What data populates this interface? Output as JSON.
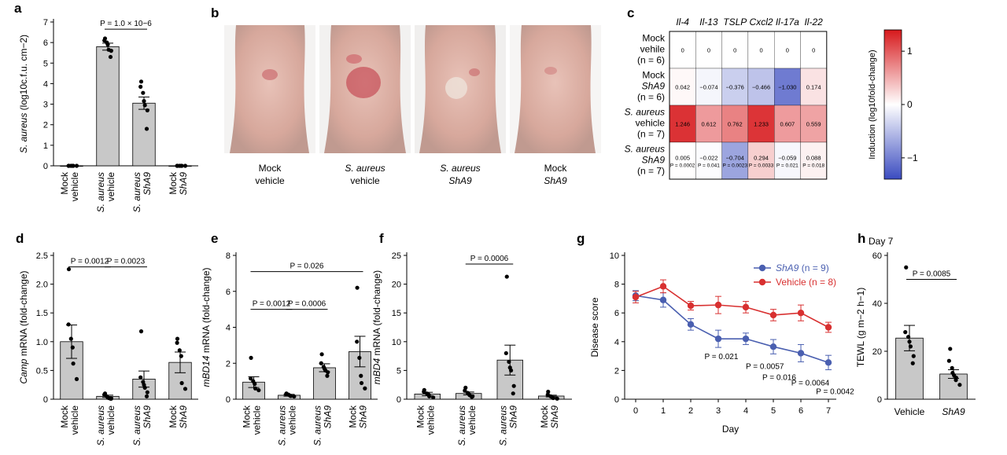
{
  "colors": {
    "bar": "#c8c8c8",
    "dot": "#000000",
    "sha9_line": "#4a5fb0",
    "vehicle_line": "#d83030",
    "heat_pos": "#d7191c",
    "heat_neg": "#3b4cc0",
    "skin": "#e0b6aa"
  },
  "panels": {
    "a": "a",
    "b": "b",
    "c": "c",
    "d": "d",
    "e": "e",
    "f": "f",
    "g": "g",
    "h": "h"
  },
  "photos": {
    "labels": [
      [
        "Mock",
        "vehicle"
      ],
      [
        "S. aureus",
        "vehicle"
      ],
      [
        "S. aureus",
        "ShA9"
      ],
      [
        "Mock",
        "ShA9"
      ]
    ]
  },
  "chart_data": [
    {
      "id": "a",
      "type": "bar",
      "ylabel": "S. aureus (log10c.f.u. cm−2)",
      "ylim": [
        0,
        7
      ],
      "yticks": [
        "0",
        "1",
        "2",
        "3",
        "4",
        "5",
        "6",
        "7"
      ],
      "categories": [
        [
          "Mock",
          "vehicle"
        ],
        [
          "S. aureus",
          "vehicle"
        ],
        [
          "S. aureus",
          "ShA9"
        ],
        [
          "Mock",
          "ShA9"
        ]
      ],
      "values": [
        0,
        5.8,
        3.05,
        0
      ],
      "errors": [
        0,
        0.17,
        0.3,
        0
      ],
      "points": [
        [
          0,
          0,
          0,
          0,
          0,
          0
        ],
        [
          6.2,
          6.1,
          6.0,
          5.9,
          5.65,
          5.6,
          5.3
        ],
        [
          4.1,
          3.85,
          3.55,
          3.15,
          2.95,
          2.7,
          1.8
        ],
        [
          0,
          0,
          0,
          0,
          0,
          0
        ]
      ],
      "annotations": [
        {
          "text": "P = 1.0 × 10−6",
          "from": 1,
          "to": 2,
          "y": 6.65
        }
      ]
    },
    {
      "id": "c",
      "type": "heatmap",
      "columns": [
        "Il-4",
        "Il-13",
        "TSLP",
        "Cxcl2",
        "Il-17a",
        "Il-22"
      ],
      "rows": [
        [
          "Mock",
          "vehile",
          "(n = 6)"
        ],
        [
          "Mock",
          "ShA9",
          "(n = 6)"
        ],
        [
          "S. aureus",
          "vehicle",
          "(n = 7)"
        ],
        [
          "S. aureus",
          "ShA9",
          "(n = 7)"
        ]
      ],
      "values": [
        [
          0,
          0,
          0,
          0,
          0,
          0
        ],
        [
          0.042,
          -0.074,
          -0.376,
          -0.466,
          -1.03,
          0.174
        ],
        [
          1.246,
          0.612,
          0.762,
          1.233,
          0.607,
          0.559
        ],
        [
          0.005,
          -0.022,
          -0.704,
          0.294,
          -0.059,
          0.088
        ]
      ],
      "value_labels": [
        [
          "0",
          "0",
          "0",
          "0",
          "0",
          "0"
        ],
        [
          "0.042",
          "−0.074",
          "−0.376",
          "−0.466",
          "−1.030",
          "0.174"
        ],
        [
          "1.246",
          "0.612",
          "0.762",
          "1.233",
          "0.607",
          "0.559"
        ],
        [
          "0.005",
          "−0.022",
          "−0.704",
          "0.294",
          "−0.059",
          "0.088"
        ]
      ],
      "pvalues": [
        null,
        null,
        null,
        [
          "P = 0.0002",
          "P = 0.041",
          "P = 0.0023",
          "P = 0.0033",
          "P = 0.021",
          "P = 0.018"
        ]
      ],
      "colorbar": {
        "ticks": [
          "1",
          "0",
          "−1"
        ],
        "label": "Induction (log10fold-change)",
        "range": [
          -1.4,
          1.4
        ]
      }
    },
    {
      "id": "d",
      "type": "bar",
      "ylabel": "Camp mRNA (fold-change)",
      "ylim": [
        0,
        2.5
      ],
      "yticks": [
        "0",
        "0.5",
        "1.0",
        "1.5",
        "2.0",
        "2.5"
      ],
      "categories": [
        [
          "Mock",
          "vehicle"
        ],
        [
          "S. aureus",
          "vehicle"
        ],
        [
          "S. aureus",
          "ShA9"
        ],
        [
          "Mock",
          "ShA9"
        ]
      ],
      "values": [
        1.0,
        0.05,
        0.35,
        0.64
      ],
      "errors": [
        0.29,
        0.02,
        0.14,
        0.18
      ],
      "points": [
        [
          2.26,
          1.3,
          1.05,
          0.9,
          0.62,
          0.35
        ],
        [
          0.1,
          0.08,
          0.05,
          0.03,
          0.02,
          0.01,
          0.01
        ],
        [
          1.18,
          0.38,
          0.3,
          0.25,
          0.2,
          0.12,
          0.05
        ],
        [
          1.05,
          0.98,
          0.85,
          0.75,
          0.28,
          0.18
        ]
      ],
      "annotations": [
        {
          "text": "P = 0.0012",
          "from": 0,
          "to": 1,
          "y": 2.3
        },
        {
          "text": "P = 0.0023",
          "from": 1,
          "to": 2,
          "y": 2.3
        }
      ]
    },
    {
      "id": "e",
      "type": "bar",
      "ylabel": "mBD14 mRNA (fold-change)",
      "ylim": [
        0,
        8
      ],
      "yticks": [
        "0",
        "2",
        "4",
        "6",
        "8"
      ],
      "categories": [
        [
          "Mock",
          "vehicle"
        ],
        [
          "S. aureus",
          "vehicle"
        ],
        [
          "S. aureus",
          "ShA9"
        ],
        [
          "Mock",
          "ShA9"
        ]
      ],
      "values": [
        0.95,
        0.22,
        1.75,
        2.65
      ],
      "errors": [
        0.3,
        0.05,
        0.22,
        0.85
      ],
      "points": [
        [
          2.3,
          1.15,
          1.0,
          0.85,
          0.6,
          0.5
        ],
        [
          0.32,
          0.28,
          0.25,
          0.2,
          0.18,
          0.15
        ],
        [
          2.5,
          2.0,
          1.8,
          1.7,
          1.6,
          1.5,
          1.3
        ],
        [
          6.2,
          3.2,
          2.3,
          1.3,
          0.9,
          0.6
        ]
      ],
      "annotations": [
        {
          "text": "P = 0.026",
          "from": 0,
          "to": 3,
          "y": 7.1
        },
        {
          "text": "P = 0.0012",
          "from": 0,
          "to": 1,
          "y": 5.0
        },
        {
          "text": "P = 0.0006",
          "from": 1,
          "to": 2,
          "y": 5.0
        }
      ]
    },
    {
      "id": "f",
      "type": "bar",
      "ylabel": "mBD4 mRNA (fold-change)",
      "ylim": [
        0,
        25
      ],
      "yticks": [
        "0",
        "5",
        "10",
        "15",
        "20",
        "25"
      ],
      "categories": [
        [
          "Mock",
          "vehicle"
        ],
        [
          "S. aureus",
          "vehicle"
        ],
        [
          "S. aureus",
          "ShA9"
        ],
        [
          "Mock",
          "ShA9"
        ]
      ],
      "values": [
        0.9,
        1.0,
        6.8,
        0.55
      ],
      "errors": [
        0.3,
        0.25,
        2.6,
        0.15
      ],
      "points": [
        [
          1.6,
          1.3,
          1.0,
          0.8,
          0.5,
          0.3
        ],
        [
          2.0,
          1.5,
          1.1,
          0.9,
          0.7,
          0.5,
          0.4
        ],
        [
          21.3,
          8.0,
          6.5,
          5.5,
          5.0,
          2.3,
          1.0
        ],
        [
          1.3,
          0.8,
          0.5,
          0.3,
          0.2,
          0.1
        ]
      ],
      "annotations": [
        {
          "text": "P = 0.0006",
          "from": 1,
          "to": 2,
          "y": 23.5
        }
      ]
    },
    {
      "id": "g",
      "type": "line",
      "xlabel": "Day",
      "ylabel": "Disease score",
      "xlim": [
        0,
        7
      ],
      "ylim": [
        0,
        10
      ],
      "x": [
        0,
        1,
        2,
        3,
        4,
        5,
        6,
        7
      ],
      "xticks": [
        "0",
        "1",
        "2",
        "3",
        "4",
        "5",
        "6",
        "7"
      ],
      "yticks": [
        "0",
        "2",
        "4",
        "6",
        "8",
        "10"
      ],
      "legend": "top-right",
      "series": [
        {
          "name": "ShA9 (n = 9)",
          "values": [
            7.2,
            6.9,
            5.2,
            4.2,
            4.2,
            3.65,
            3.2,
            2.55
          ],
          "errors": [
            0.35,
            0.5,
            0.4,
            0.6,
            0.4,
            0.5,
            0.6,
            0.5
          ]
        },
        {
          "name": "Vehicle (n = 8)",
          "values": [
            7.1,
            7.85,
            6.5,
            6.55,
            6.4,
            5.85,
            6.0,
            5.0
          ],
          "errors": [
            0.4,
            0.45,
            0.3,
            0.6,
            0.4,
            0.4,
            0.55,
            0.35
          ]
        }
      ],
      "annotations": [
        {
          "text": "P = 0.021",
          "x": 2.5,
          "y": 2.8
        },
        {
          "text": "P = 0.0057",
          "x": 4.0,
          "y": 2.1
        },
        {
          "text": "P = 0.016",
          "x": 4.6,
          "y": 1.35
        },
        {
          "text": "P = 0.0064",
          "x": 5.65,
          "y": 0.95
        },
        {
          "text": "P = 0.0042",
          "x": 6.55,
          "y": 0.35
        }
      ]
    },
    {
      "id": "h",
      "type": "bar",
      "title": "Day 7",
      "ylabel": "TEWL (g m−2 h−1)",
      "ylim": [
        0,
        60
      ],
      "yticks": [
        "0",
        "20",
        "40",
        "60"
      ],
      "categories": [
        [
          "Vehicle"
        ],
        [
          "ShA9"
        ]
      ],
      "values": [
        25.5,
        10.5
      ],
      "errors": [
        5.3,
        1.8
      ],
      "points": [
        [
          55,
          28,
          26,
          24,
          22,
          18,
          15
        ],
        [
          21,
          16,
          13,
          11,
          10,
          9,
          8,
          6
        ]
      ],
      "annotations": [
        {
          "text": "P = 0.0085",
          "from": 0,
          "to": 1,
          "y": 50
        }
      ]
    }
  ]
}
